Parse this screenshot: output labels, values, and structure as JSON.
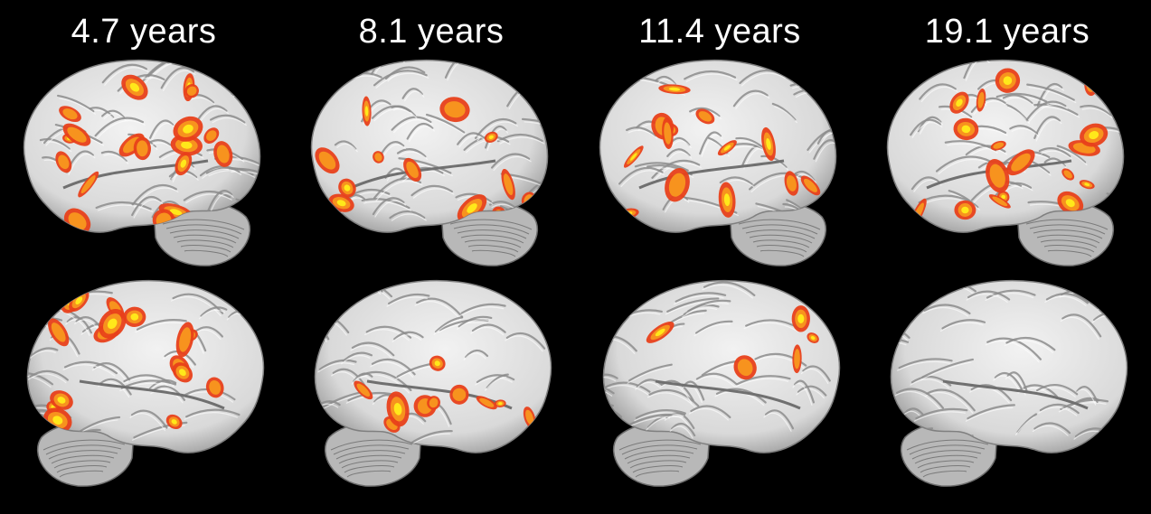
{
  "panels": [
    {
      "label": "4.7 years",
      "left_activation": 0.32,
      "right_activation": 0.26
    },
    {
      "label": "8.1 years",
      "left_activation": 0.22,
      "right_activation": 0.16
    },
    {
      "label": "11.4 years",
      "left_activation": 0.22,
      "right_activation": 0.08
    },
    {
      "label": "19.1 years",
      "left_activation": 0.28,
      "right_activation": 0.0
    }
  ],
  "colors": {
    "background": "#000000",
    "cortex": "#d9d9d9",
    "cortex_shadow": "#8a8a8a",
    "activation_low": "#e8401a",
    "activation_mid": "#f7931e",
    "activation_high": "#ffe81a"
  }
}
